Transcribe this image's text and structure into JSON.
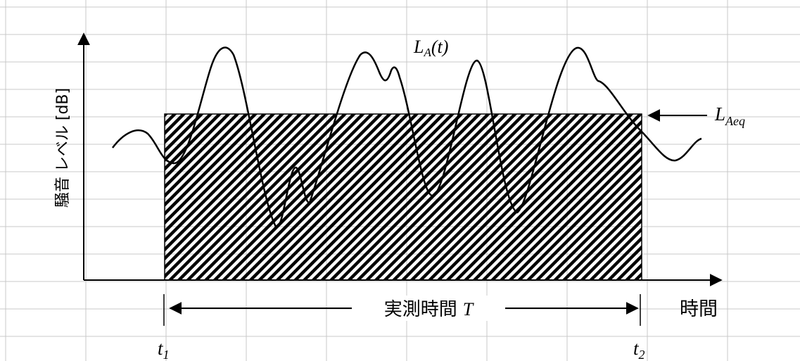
{
  "diagram": {
    "curve_label": {
      "base": "L",
      "sub": "A",
      "tail": "(t)"
    },
    "leq_label": {
      "base": "L",
      "sub": "Aeq"
    },
    "y_axis_label": "騒音 レベル [dB]",
    "x_axis_label": "時間",
    "span_label": {
      "text": "実測時間",
      "var": "T"
    },
    "t1_label": {
      "base": "t",
      "sub": "1"
    },
    "t2_label": {
      "base": "t",
      "sub": "2"
    },
    "colors": {
      "grid": "#c8c8c8",
      "ink": "#000000",
      "background": "#ffffff"
    }
  }
}
